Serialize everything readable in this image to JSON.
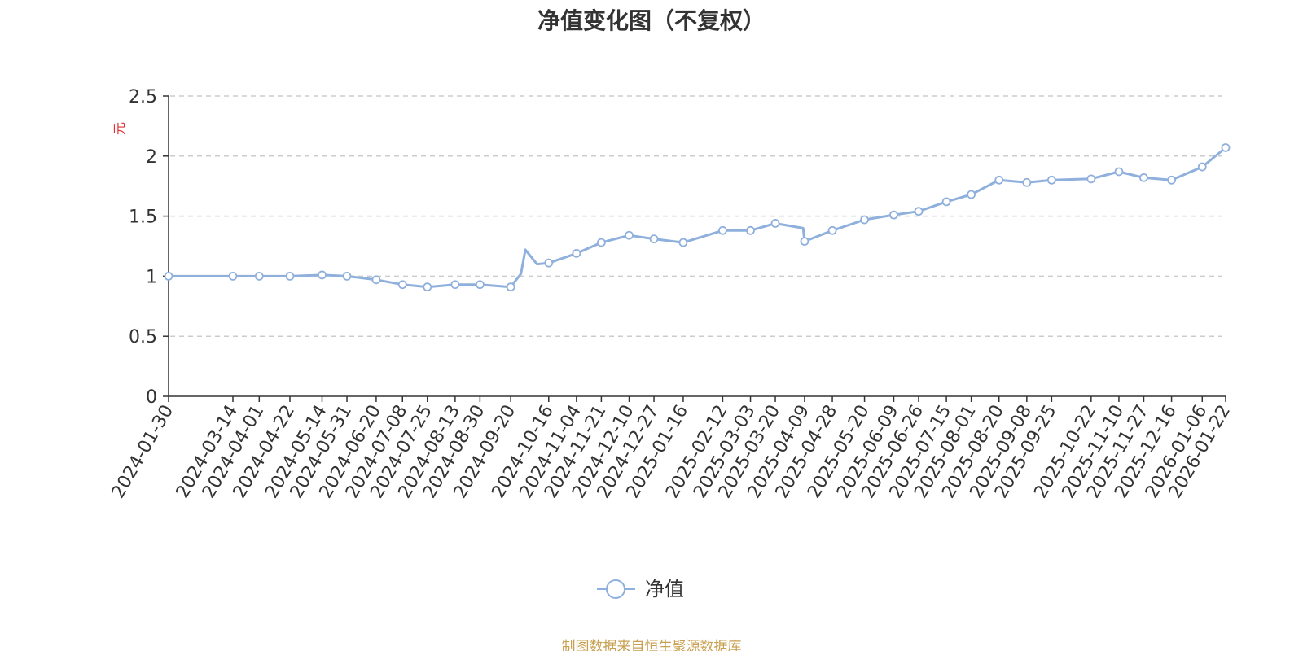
{
  "chart_data": {
    "type": "line",
    "title": "净值变化图（不复权）",
    "ylabel": "元",
    "ylim": [
      0,
      2.5
    ],
    "yticks": [
      "0",
      "0.5",
      "1",
      "1.5",
      "2",
      "2.5"
    ],
    "grid": true,
    "legend_position": "bottom-center",
    "x_tick_labels": [
      "2024-01-30",
      "2024-03-14",
      "2024-04-01",
      "2024-04-22",
      "2024-05-14",
      "2024-05-31",
      "2024-06-20",
      "2024-07-08",
      "2024-07-25",
      "2024-08-13",
      "2024-08-30",
      "2024-09-20",
      "2024-10-16",
      "2024-11-04",
      "2024-11-21",
      "2024-12-10",
      "2024-12-27",
      "2025-01-16",
      "2025-02-12",
      "2025-03-03",
      "2025-03-20",
      "2025-04-09",
      "2025-04-28",
      "2025-05-20",
      "2025-06-09",
      "2025-06-26",
      "2025-07-15",
      "2025-08-01",
      "2025-08-20",
      "2025-09-08",
      "2025-09-25",
      "2025-10-22",
      "2025-11-10",
      "2025-11-27",
      "2025-12-16",
      "2026-01-06",
      "2026-01-22"
    ],
    "series": [
      {
        "name": "净值",
        "color": "#8fb0dc",
        "x": [
          "2024-01-30",
          "2024-03-14",
          "2024-04-01",
          "2024-04-22",
          "2024-05-14",
          "2024-05-31",
          "2024-06-20",
          "2024-07-08",
          "2024-07-25",
          "2024-08-13",
          "2024-08-30",
          "2024-09-20",
          "2024-09-27",
          "2024-09-30",
          "2024-10-08",
          "2024-10-16",
          "2024-11-04",
          "2024-11-21",
          "2024-12-10",
          "2024-12-27",
          "2025-01-16",
          "2025-02-12",
          "2025-03-03",
          "2025-03-20",
          "2025-04-08",
          "2025-04-09",
          "2025-04-28",
          "2025-05-20",
          "2025-06-09",
          "2025-06-26",
          "2025-07-15",
          "2025-08-01",
          "2025-08-20",
          "2025-09-08",
          "2025-09-25",
          "2025-10-22",
          "2025-11-10",
          "2025-11-27",
          "2025-12-16",
          "2026-01-06",
          "2026-01-22"
        ],
        "values": [
          1.0,
          1.0,
          1.0,
          1.0,
          1.01,
          1.0,
          0.97,
          0.93,
          0.91,
          0.93,
          0.93,
          0.91,
          1.02,
          1.22,
          1.1,
          1.11,
          1.19,
          1.28,
          1.34,
          1.31,
          1.28,
          1.38,
          1.38,
          1.44,
          1.4,
          1.29,
          1.38,
          1.47,
          1.51,
          1.54,
          1.62,
          1.68,
          1.8,
          1.78,
          1.8,
          1.81,
          1.87,
          1.82,
          1.8,
          1.91,
          2.07
        ]
      }
    ]
  },
  "footer": {
    "source": "制图数据来自恒生聚源数据库"
  }
}
